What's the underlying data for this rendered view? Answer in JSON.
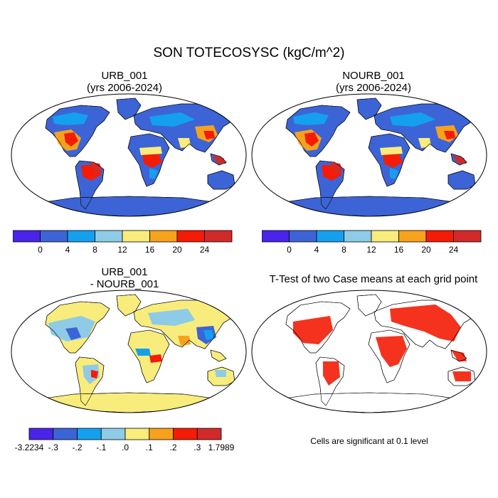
{
  "title": "SON TOTECOSYSC (kgC/m^2)",
  "panels": [
    {
      "id": "urb",
      "title_line1": "URB_001",
      "title_line2": "(yrs 2006-2024)"
    },
    {
      "id": "nourb",
      "title_line1": "NOURB_001",
      "title_line2": "(yrs 2006-2024)"
    },
    {
      "id": "diff",
      "title_line1": "URB_001",
      "title_line2": "- NOURB_001"
    },
    {
      "id": "ttest",
      "title_line1": "T-Test of two Case means at each grid point",
      "title_line2": ""
    }
  ],
  "colorbar_main": {
    "colors": [
      "#4a24e8",
      "#3d64d6",
      "#14a0ee",
      "#8ecbe6",
      "#f8ec7c",
      "#f7a21c",
      "#f41c06",
      "#d22a2a"
    ],
    "labels": [
      "0",
      "4",
      "8",
      "12",
      "16",
      "20",
      "24"
    ]
  },
  "colorbar_diff": {
    "colors": [
      "#4a24e8",
      "#3d64d6",
      "#14a0ee",
      "#8ecbe6",
      "#f8ec7c",
      "#f7a21c",
      "#f41c06",
      "#d22a2a"
    ],
    "labels": [
      "-3.2234",
      "-.3",
      "-.2",
      "-.1",
      ".0",
      ".1",
      ".2",
      ".3",
      "1.7989"
    ]
  },
  "significance_note": "Cells are significant at 0.1 level",
  "colors": {
    "ocean": "#ffffff",
    "land_low": "#3d64d6",
    "land_mid": "#14a0ee",
    "land_light": "#8ecbe6",
    "land_yellow": "#f8ec7c",
    "land_orange": "#f7a21c",
    "land_red": "#f41c06",
    "land_darkred": "#d22a2a",
    "sig_red": "#f41c06"
  }
}
